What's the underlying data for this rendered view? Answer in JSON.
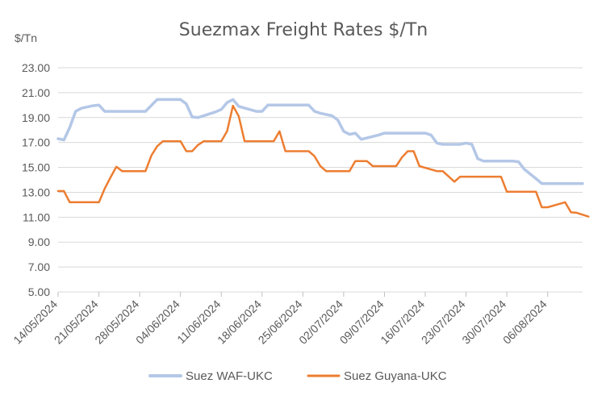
{
  "chart_data": {
    "type": "line",
    "title": "Suezmax Freight Rates $/Tn",
    "ylabel": "$/Tn",
    "xlabel": "",
    "ylim": [
      5,
      23
    ],
    "yticks": [
      "5.00",
      "7.00",
      "9.00",
      "11.00",
      "13.00",
      "15.00",
      "17.00",
      "19.00",
      "21.00",
      "23.00"
    ],
    "xticks": [
      "14/05/2024",
      "21/05/2024",
      "28/05/2024",
      "04/06/2024",
      "11/06/2024",
      "18/06/2024",
      "25/06/2024",
      "02/07/2024",
      "09/07/2024",
      "16/07/2024",
      "23/07/2024",
      "30/07/2024",
      "06/08/2024"
    ],
    "xrange": [
      "2024-05-14",
      "2024-08-12"
    ],
    "grid": "horizontal",
    "legend_position": "bottom",
    "series": [
      {
        "name": "Suez WAF-UKC",
        "color": "#B4C7E7",
        "points": [
          [
            "2024-05-14",
            17.3
          ],
          [
            "2024-05-15",
            17.2
          ],
          [
            "2024-05-16",
            18.2
          ],
          [
            "2024-05-17",
            19.5
          ],
          [
            "2024-05-18",
            19.75
          ],
          [
            "2024-05-20",
            19.95
          ],
          [
            "2024-05-21",
            20.0
          ],
          [
            "2024-05-22",
            19.5
          ],
          [
            "2024-05-28",
            19.5
          ],
          [
            "2024-05-29",
            19.5
          ],
          [
            "2024-05-31",
            20.45
          ],
          [
            "2024-06-04",
            20.45
          ],
          [
            "2024-06-05",
            20.1
          ],
          [
            "2024-06-06",
            19.05
          ],
          [
            "2024-06-07",
            19.0
          ],
          [
            "2024-06-10",
            19.45
          ],
          [
            "2024-06-11",
            19.65
          ],
          [
            "2024-06-12",
            20.2
          ],
          [
            "2024-06-13",
            20.45
          ],
          [
            "2024-06-14",
            19.9
          ],
          [
            "2024-06-17",
            19.5
          ],
          [
            "2024-06-18",
            19.5
          ],
          [
            "2024-06-19",
            20.0
          ],
          [
            "2024-06-26",
            20.0
          ],
          [
            "2024-06-27",
            19.5
          ],
          [
            "2024-06-28",
            19.35
          ],
          [
            "2024-06-30",
            19.15
          ],
          [
            "2024-07-01",
            18.8
          ],
          [
            "2024-07-02",
            17.9
          ],
          [
            "2024-07-03",
            17.65
          ],
          [
            "2024-07-04",
            17.75
          ],
          [
            "2024-07-05",
            17.25
          ],
          [
            "2024-07-08",
            17.6
          ],
          [
            "2024-07-09",
            17.75
          ],
          [
            "2024-07-16",
            17.75
          ],
          [
            "2024-07-17",
            17.6
          ],
          [
            "2024-07-18",
            16.95
          ],
          [
            "2024-07-19",
            16.85
          ],
          [
            "2024-07-22",
            16.85
          ],
          [
            "2024-07-23",
            16.95
          ],
          [
            "2024-07-24",
            16.85
          ],
          [
            "2024-07-25",
            15.7
          ],
          [
            "2024-07-26",
            15.5
          ],
          [
            "2024-07-31",
            15.5
          ],
          [
            "2024-08-01",
            15.45
          ],
          [
            "2024-08-02",
            14.85
          ],
          [
            "2024-08-04",
            14.1
          ],
          [
            "2024-08-05",
            13.7
          ],
          [
            "2024-08-12",
            13.7
          ]
        ]
      },
      {
        "name": "Suez Guyana-UKC",
        "color": "#ED7D31",
        "points": [
          [
            "2024-05-14",
            13.1
          ],
          [
            "2024-05-15",
            13.1
          ],
          [
            "2024-05-16",
            12.2
          ],
          [
            "2024-05-21",
            12.2
          ],
          [
            "2024-05-22",
            13.3
          ],
          [
            "2024-05-23",
            14.2
          ],
          [
            "2024-05-24",
            15.05
          ],
          [
            "2024-05-25",
            14.7
          ],
          [
            "2024-05-29",
            14.7
          ],
          [
            "2024-05-30",
            15.95
          ],
          [
            "2024-05-31",
            16.7
          ],
          [
            "2024-06-01",
            17.1
          ],
          [
            "2024-06-04",
            17.1
          ],
          [
            "2024-06-05",
            16.3
          ],
          [
            "2024-06-06",
            16.3
          ],
          [
            "2024-06-07",
            16.8
          ],
          [
            "2024-06-08",
            17.1
          ],
          [
            "2024-06-11",
            17.1
          ],
          [
            "2024-06-12",
            17.9
          ],
          [
            "2024-06-13",
            19.95
          ],
          [
            "2024-06-14",
            19.1
          ],
          [
            "2024-06-15",
            17.1
          ],
          [
            "2024-06-20",
            17.1
          ],
          [
            "2024-06-21",
            17.9
          ],
          [
            "2024-06-22",
            16.3
          ],
          [
            "2024-06-25",
            16.3
          ],
          [
            "2024-06-26",
            16.3
          ],
          [
            "2024-06-27",
            15.9
          ],
          [
            "2024-06-28",
            15.1
          ],
          [
            "2024-06-29",
            14.7
          ],
          [
            "2024-07-03",
            14.7
          ],
          [
            "2024-07-04",
            15.5
          ],
          [
            "2024-07-06",
            15.5
          ],
          [
            "2024-07-07",
            15.1
          ],
          [
            "2024-07-11",
            15.1
          ],
          [
            "2024-07-12",
            15.8
          ],
          [
            "2024-07-13",
            16.3
          ],
          [
            "2024-07-14",
            16.3
          ],
          [
            "2024-07-15",
            15.1
          ],
          [
            "2024-07-18",
            14.7
          ],
          [
            "2024-07-19",
            14.7
          ],
          [
            "2024-07-21",
            13.85
          ],
          [
            "2024-07-22",
            14.25
          ],
          [
            "2024-07-29",
            14.25
          ],
          [
            "2024-07-30",
            13.05
          ],
          [
            "2024-08-04",
            13.05
          ],
          [
            "2024-08-05",
            11.8
          ],
          [
            "2024-08-06",
            11.8
          ],
          [
            "2024-08-09",
            12.2
          ],
          [
            "2024-08-10",
            11.4
          ],
          [
            "2024-08-11",
            11.35
          ],
          [
            "2024-08-13",
            11.05
          ]
        ]
      }
    ]
  }
}
